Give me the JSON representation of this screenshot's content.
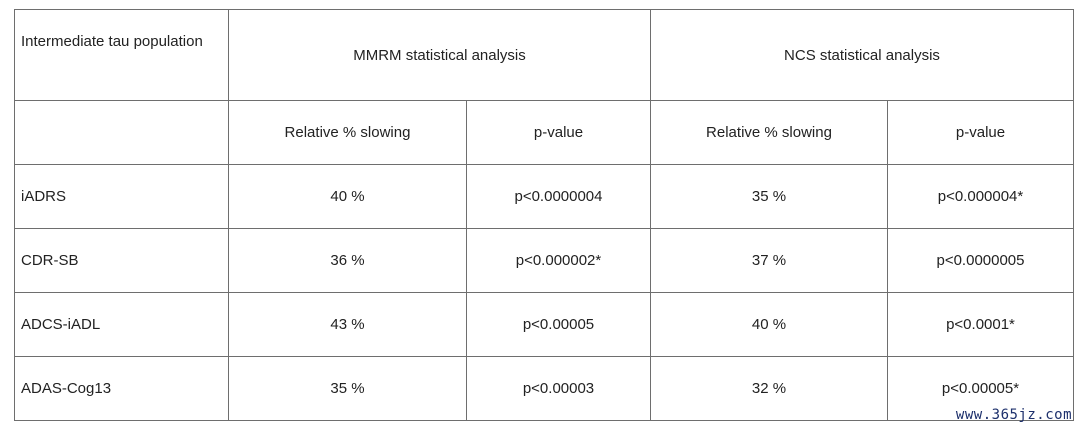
{
  "table": {
    "corner_label": "Intermediate tau population",
    "group_headers": [
      "MMRM statistical analysis",
      "NCS statistical analysis"
    ],
    "sub_headers": [
      "Relative % slowing",
      "p-value",
      "Relative % slowing",
      "p-value"
    ],
    "rows": [
      {
        "label": "iADRS",
        "cells": [
          "40 %",
          "p<0.0000004",
          "35 %",
          "p<0.000004*"
        ]
      },
      {
        "label": "CDR-SB",
        "cells": [
          "36 %",
          "p<0.000002*",
          "37 %",
          "p<0.0000005"
        ]
      },
      {
        "label": "ADCS-iADL",
        "cells": [
          "43 %",
          "p<0.00005",
          "40 %",
          "p<0.0001*"
        ]
      },
      {
        "label": "ADAS-Cog13",
        "cells": [
          "35 %",
          "p<0.00003",
          "32 %",
          "p<0.00005*"
        ]
      }
    ]
  },
  "watermark": "www.365jz.com"
}
